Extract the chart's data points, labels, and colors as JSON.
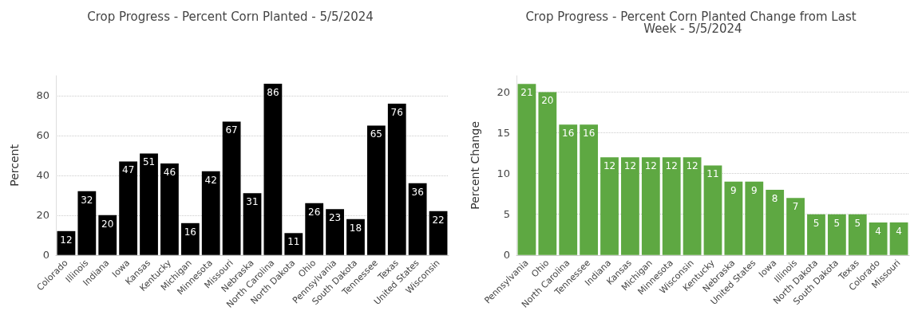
{
  "chart_data": [
    {
      "type": "bar",
      "title": "Crop Progress - Percent Corn Planted - 5/5/2024",
      "ylabel": "Percent",
      "categories": [
        "Colorado",
        "Illinois",
        "Indiana",
        "Iowa",
        "Kansas",
        "Kentucky",
        "Michigan",
        "Minnesota",
        "Missouri",
        "Nebraska",
        "North Carolina",
        "North Dakota",
        "Ohio",
        "Pennsylvania",
        "South Dakota",
        "Tennessee",
        "Texas",
        "United States",
        "Wisconsin"
      ],
      "values": [
        12,
        32,
        20,
        47,
        51,
        46,
        16,
        42,
        67,
        31,
        86,
        11,
        26,
        23,
        18,
        65,
        76,
        36,
        22
      ],
      "color": "#000000",
      "ylim": [
        0,
        90
      ],
      "yticks": [
        0,
        20,
        40,
        60,
        80
      ],
      "grid": "y",
      "data_labels": true
    },
    {
      "type": "bar",
      "title": "Crop Progress - Percent Corn Planted Change from Last Week - 5/5/2024",
      "ylabel": "Percent Change",
      "categories": [
        "Pennsylvania",
        "Ohio",
        "North Carolina",
        "Tennessee",
        "Indiana",
        "Kansas",
        "Michigan",
        "Minnesota",
        "Wisconsin",
        "Kentucky",
        "Nebraska",
        "United States",
        "Iowa",
        "Illinois",
        "North Dakota",
        "South Dakota",
        "Texas",
        "Colorado",
        "Missouri"
      ],
      "values": [
        21,
        20,
        16,
        16,
        12,
        12,
        12,
        12,
        12,
        11,
        9,
        9,
        8,
        7,
        5,
        5,
        5,
        4,
        4
      ],
      "color": "#5ea842",
      "ylim": [
        0,
        22
      ],
      "yticks": [
        0,
        5,
        10,
        15,
        20
      ],
      "grid": "y",
      "data_labels": true
    }
  ]
}
